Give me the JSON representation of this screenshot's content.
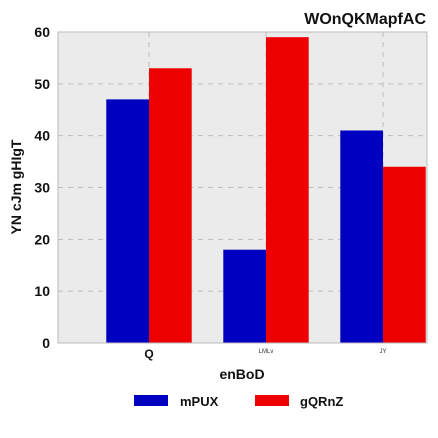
{
  "chart_data": {
    "type": "bar",
    "title": "WOnQKMapfAC",
    "xlabel": "enBoD",
    "ylabel": "YN  cJm gHIgT",
    "categories": [
      "Q",
      "LMLv",
      "JY"
    ],
    "series": [
      {
        "name": "mPUX",
        "values": [
          47,
          18,
          41
        ],
        "color": "#0000c0"
      },
      {
        "name": "gQRnZ",
        "values": [
          53,
          59,
          34
        ],
        "color": "#ee0000"
      }
    ],
    "ylim": [
      0,
      60
    ],
    "yticks": [
      "0",
      "10",
      "20",
      "30",
      "40",
      "50",
      "60"
    ],
    "grid": true,
    "legend": "bottom-center",
    "background": "#ebebeb"
  }
}
